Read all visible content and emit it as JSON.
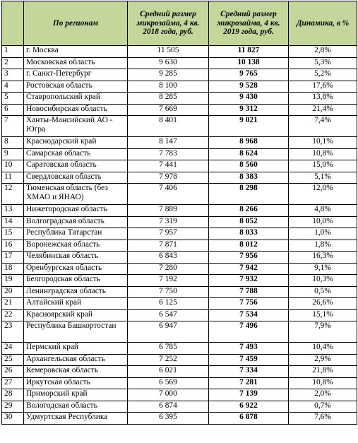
{
  "headers": {
    "num": "",
    "region": "По регионам",
    "v2018": "Средний размер микрозайма, 4 кв. 2018 года, руб.",
    "v2019": "Средний размер микрозайма, 4 кв. 2019 года, руб.",
    "dynamics": "Динамика, в %"
  },
  "rows": [
    {
      "n": "1",
      "region": "г. Москва",
      "v2018": "11 505",
      "v2019": "11 827",
      "dyn": "2,8%"
    },
    {
      "n": "2",
      "region": "Московская область",
      "v2018": "9 630",
      "v2019": "10 138",
      "dyn": "5,3%"
    },
    {
      "n": "3",
      "region": "г. Санкт-Петербург",
      "v2018": "9 285",
      "v2019": "9 765",
      "dyn": "5,2%"
    },
    {
      "n": "4",
      "region": "Ростовская область",
      "v2018": "8 100",
      "v2019": "9 528",
      "dyn": "17,6%"
    },
    {
      "n": "5",
      "region": "Ставропольский край",
      "v2018": "8 285",
      "v2019": "9 430",
      "dyn": "13,8%"
    },
    {
      "n": "6",
      "region": "Новосибирская область",
      "v2018": "7 669",
      "v2019": "9 312",
      "dyn": "21,4%"
    },
    {
      "n": "7",
      "region": "Ханты-Мансийский АО - Югра",
      "v2018": "8 401",
      "v2019": "9 021",
      "dyn": "7,4%",
      "tall": true
    },
    {
      "n": "8",
      "region": "Краснодарский край",
      "v2018": "8 147",
      "v2019": "8 968",
      "dyn": "10,1%"
    },
    {
      "n": "9",
      "region": "Самарская область",
      "v2018": "7 783",
      "v2019": "8 624",
      "dyn": "10,8%"
    },
    {
      "n": "10",
      "region": "Саратовская область",
      "v2018": "7 441",
      "v2019": "8 560",
      "dyn": "15,0%"
    },
    {
      "n": "11",
      "region": "Свердловская область",
      "v2018": "7 978",
      "v2019": "8 383",
      "dyn": "5,1%"
    },
    {
      "n": "12",
      "region": "Тюменская область (без ХМАО и ЯНАО)",
      "v2018": "7 406",
      "v2019": "8 298",
      "dyn": "12,0%",
      "tall": true
    },
    {
      "n": "13",
      "region": "Нижегородская область",
      "v2018": "7 889",
      "v2019": "8 266",
      "dyn": "4,8%"
    },
    {
      "n": "14",
      "region": "Волгоградская область",
      "v2018": "7 319",
      "v2019": "8 052",
      "dyn": "10,0%"
    },
    {
      "n": "15",
      "region": "Республика Татарстан",
      "v2018": "7 957",
      "v2019": "8 033",
      "dyn": "1,0%"
    },
    {
      "n": "16",
      "region": "Воронежская область",
      "v2018": "7 871",
      "v2019": "8 012",
      "dyn": "1,8%"
    },
    {
      "n": "17",
      "region": "Челябинская область",
      "v2018": "6 843",
      "v2019": "7 956",
      "dyn": "16,3%"
    },
    {
      "n": "18",
      "region": "Оренбургская область",
      "v2018": "7 280",
      "v2019": "7 942",
      "dyn": "9,1%"
    },
    {
      "n": "19",
      "region": "Белгородская область",
      "v2018": "7 192",
      "v2019": "7 932",
      "dyn": "10,3%"
    },
    {
      "n": "20",
      "region": "Ленинградская область",
      "v2018": "7 750",
      "v2019": "7 788",
      "dyn": "0,5%"
    },
    {
      "n": "21",
      "region": "Алтайский край",
      "v2018": "6 125",
      "v2019": "7 756",
      "dyn": "26,6%"
    },
    {
      "n": "22",
      "region": "Красноярский край",
      "v2018": "6 547",
      "v2019": "7 534",
      "dyn": "15,1%"
    },
    {
      "n": "23",
      "region": "Республика Башкортостан",
      "v2018": "6 947",
      "v2019": "7 496",
      "dyn": "7,9%",
      "tall": true
    },
    {
      "n": "24",
      "region": "Пермский край",
      "v2018": "6 785",
      "v2019": "7 493",
      "dyn": "10,4%"
    },
    {
      "n": "25",
      "region": "Архангельская область",
      "v2018": "7 252",
      "v2019": "7 459",
      "dyn": "2,9%"
    },
    {
      "n": "26",
      "region": "Кемеровская область",
      "v2018": "6 021",
      "v2019": "7 334",
      "dyn": "21,8%"
    },
    {
      "n": "27",
      "region": "Иркутская область",
      "v2018": "6 569",
      "v2019": "7 281",
      "dyn": "10,8%"
    },
    {
      "n": "28",
      "region": "Приморский край",
      "v2018": "7 000",
      "v2019": "7 139",
      "dyn": "2,0%"
    },
    {
      "n": "29",
      "region": "Вологодская область",
      "v2018": "6 874",
      "v2019": "6 922",
      "dyn": "0,7%"
    },
    {
      "n": "30",
      "region": "Удмуртская Республика",
      "v2018": "6 395",
      "v2019": "6 878",
      "dyn": "7,6%"
    }
  ]
}
